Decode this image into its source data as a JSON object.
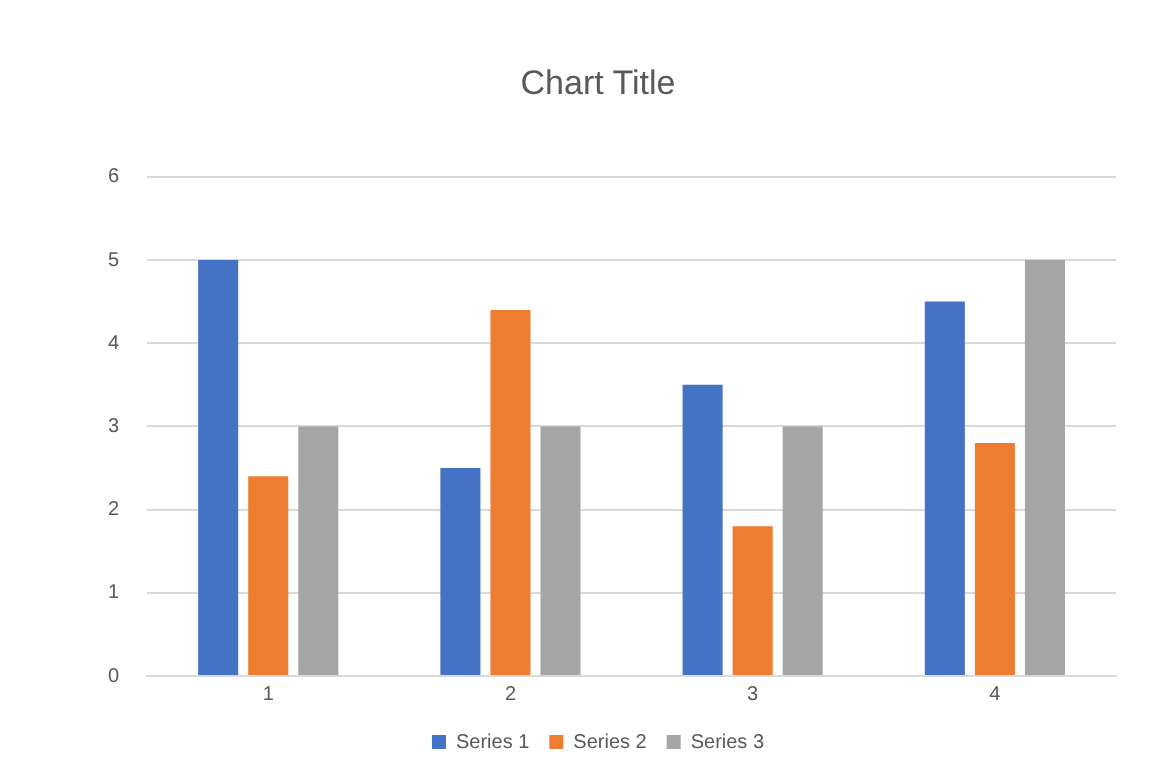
{
  "chart_data": {
    "type": "bar",
    "title": "Chart Title",
    "categories": [
      "1",
      "2",
      "3",
      "4"
    ],
    "series": [
      {
        "name": "Series 1",
        "color": "#4472c4",
        "values": [
          5,
          2.5,
          3.5,
          4.5
        ]
      },
      {
        "name": "Series 2",
        "color": "#ed7d31",
        "values": [
          2.4,
          4.4,
          1.8,
          2.8
        ]
      },
      {
        "name": "Series 3",
        "color": "#a5a5a5",
        "values": [
          3,
          3,
          3,
          5
        ]
      }
    ],
    "ylim": [
      0,
      6
    ],
    "yticks": [
      0,
      1,
      2,
      3,
      4,
      5,
      6
    ],
    "grid": "y",
    "legend": "bottom"
  }
}
